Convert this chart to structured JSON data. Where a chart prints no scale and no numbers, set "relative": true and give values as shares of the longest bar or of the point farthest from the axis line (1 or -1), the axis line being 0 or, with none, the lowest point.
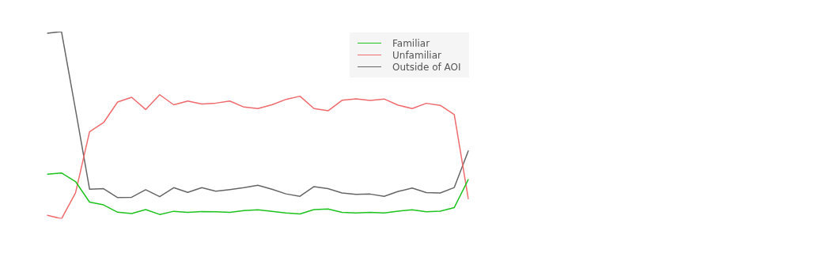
{
  "chart_data": {
    "type": "line",
    "relative": true,
    "legend": "top right",
    "grid": false,
    "marker": "none",
    "line_style": "solid",
    "categories": [
      null,
      null,
      null,
      null,
      null,
      null,
      null,
      null,
      null,
      null,
      null,
      null,
      null,
      null,
      null,
      null,
      null,
      null,
      null,
      null,
      null,
      null,
      null,
      null,
      null,
      null,
      null,
      null,
      null,
      null,
      null
    ],
    "series": [
      {
        "name": "Familiar",
        "color": "#1ec31e",
        "values": [
          0.238,
          0.245,
          0.199,
          0.089,
          0.074,
          0.035,
          0.028,
          0.049,
          0.023,
          0.04,
          0.034,
          0.038,
          0.037,
          0.034,
          0.044,
          0.048,
          0.04,
          0.031,
          0.026,
          0.049,
          0.052,
          0.034,
          0.031,
          0.034,
          0.031,
          0.041,
          0.048,
          0.037,
          0.041,
          0.06,
          0.21
        ]
      },
      {
        "name": "Unfamiliar",
        "color": "#ef6b6e",
        "values": [
          0.018,
          0,
          0.138,
          0.465,
          0.514,
          0.624,
          0.649,
          0.584,
          0.663,
          0.609,
          0.629,
          0.613,
          0.618,
          0.629,
          0.597,
          0.589,
          0.609,
          0.638,
          0.655,
          0.589,
          0.577,
          0.633,
          0.641,
          0.632,
          0.64,
          0.607,
          0.589,
          0.617,
          0.606,
          0.557,
          0.107
        ]
      },
      {
        "name": "Outside of AOI",
        "color": "#666666",
        "values": [
          0.992,
          1,
          0.583,
          0.158,
          0.161,
          0.113,
          0.115,
          0.155,
          0.118,
          0.166,
          0.141,
          0.166,
          0.147,
          0.156,
          0.166,
          0.179,
          0.158,
          0.133,
          0.12,
          0.172,
          0.161,
          0.138,
          0.13,
          0.132,
          0.12,
          0.146,
          0.164,
          0.14,
          0.138,
          0.167,
          0.363
        ]
      }
    ]
  }
}
